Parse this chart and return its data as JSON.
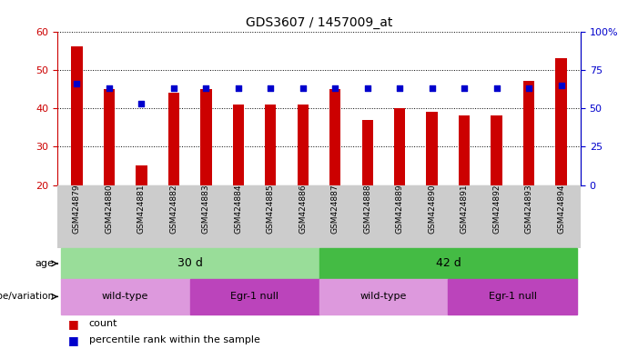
{
  "title": "GDS3607 / 1457009_at",
  "samples": [
    "GSM424879",
    "GSM424880",
    "GSM424881",
    "GSM424882",
    "GSM424883",
    "GSM424884",
    "GSM424885",
    "GSM424886",
    "GSM424887",
    "GSM424888",
    "GSM424889",
    "GSM424890",
    "GSM424891",
    "GSM424892",
    "GSM424893",
    "GSM424894"
  ],
  "counts": [
    56,
    45,
    25,
    44,
    45,
    41,
    41,
    41,
    45,
    37,
    40,
    39,
    38,
    38,
    47,
    53
  ],
  "percentiles": [
    66,
    63,
    53,
    63,
    63,
    63,
    63,
    63,
    63,
    63,
    63,
    63,
    63,
    63,
    63,
    65
  ],
  "ylim_left": [
    20,
    60
  ],
  "ylim_right": [
    0,
    100
  ],
  "yticks_left": [
    20,
    30,
    40,
    50,
    60
  ],
  "yticks_right": [
    0,
    25,
    50,
    75,
    100
  ],
  "yticklabels_right": [
    "0",
    "25",
    "50",
    "75",
    "100%"
  ],
  "bar_color": "#cc0000",
  "dot_color": "#0000cc",
  "bar_width": 0.35,
  "age_groups": [
    {
      "label": "30 d",
      "start": 0,
      "end": 8,
      "color": "#99dd99"
    },
    {
      "label": "42 d",
      "start": 8,
      "end": 16,
      "color": "#44bb44"
    }
  ],
  "genotype_groups": [
    {
      "label": "wild-type",
      "start": 0,
      "end": 4,
      "color": "#dd99dd"
    },
    {
      "label": "Egr-1 null",
      "start": 4,
      "end": 8,
      "color": "#bb44bb"
    },
    {
      "label": "wild-type",
      "start": 8,
      "end": 12,
      "color": "#dd99dd"
    },
    {
      "label": "Egr-1 null",
      "start": 12,
      "end": 16,
      "color": "#bb44bb"
    }
  ],
  "bg_color": "#ffffff",
  "xtick_bg": "#cccccc",
  "legend_count_label": "count",
  "legend_pct_label": "percentile rank within the sample",
  "age_label": "age",
  "genotype_label": "genotype/variation"
}
